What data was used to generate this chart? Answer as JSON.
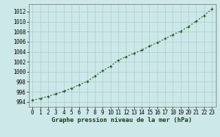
{
  "x": [
    0,
    1,
    2,
    3,
    4,
    5,
    6,
    7,
    8,
    9,
    10,
    11,
    12,
    13,
    14,
    15,
    16,
    17,
    18,
    19,
    20,
    21,
    22,
    23
  ],
  "y": [
    994.3,
    994.7,
    995.1,
    995.6,
    996.1,
    996.7,
    997.4,
    998.1,
    999.1,
    1000.2,
    1001.1,
    1002.3,
    1003.0,
    1003.7,
    1004.3,
    1005.1,
    1005.8,
    1006.6,
    1007.4,
    1008.1,
    1009.0,
    1010.1,
    1011.2,
    1012.5
  ],
  "line_color": "#1a5c1a",
  "marker": "+",
  "bg_color": "#cce8e8",
  "grid_color": "#aacccc",
  "xlabel": "Graphe pression niveau de la mer (hPa)",
  "xlabel_fontsize": 6.5,
  "tick_fontsize": 5.5,
  "ylim": [
    993.0,
    1013.5
  ],
  "xlim": [
    -0.5,
    23.5
  ],
  "yticks": [
    994,
    996,
    998,
    1000,
    1002,
    1004,
    1006,
    1008,
    1010,
    1012
  ],
  "xticks": [
    0,
    1,
    2,
    3,
    4,
    5,
    6,
    7,
    8,
    9,
    10,
    11,
    12,
    13,
    14,
    15,
    16,
    17,
    18,
    19,
    20,
    21,
    22,
    23
  ]
}
